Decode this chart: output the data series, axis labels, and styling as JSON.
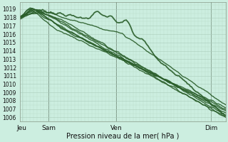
{
  "xlabel": "Pression niveau de la mer( hPa )",
  "ylim": [
    1005.5,
    1019.8
  ],
  "yticks": [
    1006,
    1007,
    1008,
    1009,
    1010,
    1011,
    1012,
    1013,
    1014,
    1015,
    1016,
    1017,
    1018,
    1019
  ],
  "bg_color": "#cceee0",
  "grid_color_major": "#aaccbb",
  "grid_color_minor": "#bbddcc",
  "line_color": "#2a5e2a",
  "xlim": [
    0,
    1
  ]
}
